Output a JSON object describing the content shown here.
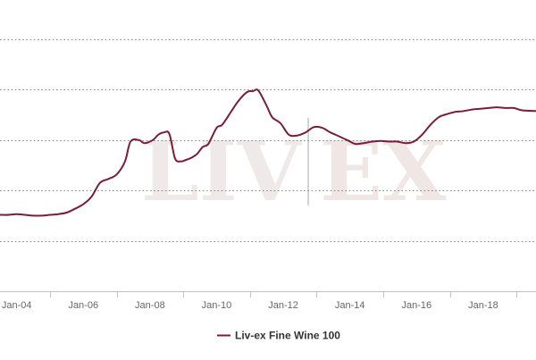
{
  "colors": {
    "series": "#7b1c3a",
    "watermark_left": "#efe9e9",
    "watermark_right": "#f0e7e4"
  },
  "watermark": {
    "left": "LIV",
    "right": "EX"
  },
  "chart_data": {
    "type": "line",
    "title": "",
    "xlabel": "",
    "ylabel": "",
    "x_tick_labels": [
      "Jan-04",
      "Jan-06",
      "Jan-08",
      "Jan-10",
      "Jan-12",
      "Jan-14",
      "Jan-16",
      "Jan-18"
    ],
    "y_tick_labels": [],
    "y_tick_count": 6,
    "grid": true,
    "legend_position": "bottom-center",
    "x_range": [
      "2003-07",
      "2019-08"
    ],
    "y_range": [
      0,
      330
    ],
    "series": [
      {
        "name": "Liv-ex Fine Wine 100",
        "points": [
          [
            "2003-07",
            100
          ],
          [
            "2003-10",
            100
          ],
          [
            "2004-01",
            101
          ],
          [
            "2004-04",
            100
          ],
          [
            "2004-07",
            99
          ],
          [
            "2004-10",
            99
          ],
          [
            "2005-01",
            100
          ],
          [
            "2005-04",
            101
          ],
          [
            "2005-07",
            103
          ],
          [
            "2005-10",
            108
          ],
          [
            "2006-01",
            114
          ],
          [
            "2006-04",
            124
          ],
          [
            "2006-07",
            142
          ],
          [
            "2006-10",
            147
          ],
          [
            "2007-01",
            153
          ],
          [
            "2007-04",
            170
          ],
          [
            "2007-06",
            196
          ],
          [
            "2007-09",
            198
          ],
          [
            "2007-11",
            194
          ],
          [
            "2008-02",
            198
          ],
          [
            "2008-04",
            205
          ],
          [
            "2008-06",
            208
          ],
          [
            "2008-08",
            206
          ],
          [
            "2008-10",
            174
          ],
          [
            "2008-12",
            170
          ],
          [
            "2009-02",
            172
          ],
          [
            "2009-04",
            175
          ],
          [
            "2009-06",
            180
          ],
          [
            "2009-08",
            189
          ],
          [
            "2009-10",
            193
          ],
          [
            "2010-01",
            214
          ],
          [
            "2010-03",
            218
          ],
          [
            "2010-06",
            234
          ],
          [
            "2010-09",
            250
          ],
          [
            "2010-12",
            261
          ],
          [
            "2011-02",
            262
          ],
          [
            "2011-04",
            263
          ],
          [
            "2011-07",
            243
          ],
          [
            "2011-09",
            228
          ],
          [
            "2011-12",
            220
          ],
          [
            "2012-03",
            205
          ],
          [
            "2012-06",
            204
          ],
          [
            "2012-09",
            208
          ],
          [
            "2012-12",
            215
          ],
          [
            "2013-03",
            214
          ],
          [
            "2013-06",
            208
          ],
          [
            "2013-09",
            203
          ],
          [
            "2013-12",
            198
          ],
          [
            "2014-03",
            193
          ],
          [
            "2014-06",
            194
          ],
          [
            "2014-09",
            196
          ],
          [
            "2014-12",
            197
          ],
          [
            "2015-03",
            196
          ],
          [
            "2015-06",
            196
          ],
          [
            "2015-09",
            194
          ],
          [
            "2015-12",
            196
          ],
          [
            "2016-03",
            205
          ],
          [
            "2016-06",
            218
          ],
          [
            "2016-09",
            228
          ],
          [
            "2016-12",
            232
          ],
          [
            "2017-03",
            235
          ],
          [
            "2017-06",
            236
          ],
          [
            "2017-09",
            238
          ],
          [
            "2017-12",
            239
          ],
          [
            "2018-03",
            240
          ],
          [
            "2018-06",
            241
          ],
          [
            "2018-09",
            240
          ],
          [
            "2018-12",
            240
          ],
          [
            "2019-03",
            237
          ],
          [
            "2019-08",
            236
          ]
        ]
      }
    ]
  }
}
